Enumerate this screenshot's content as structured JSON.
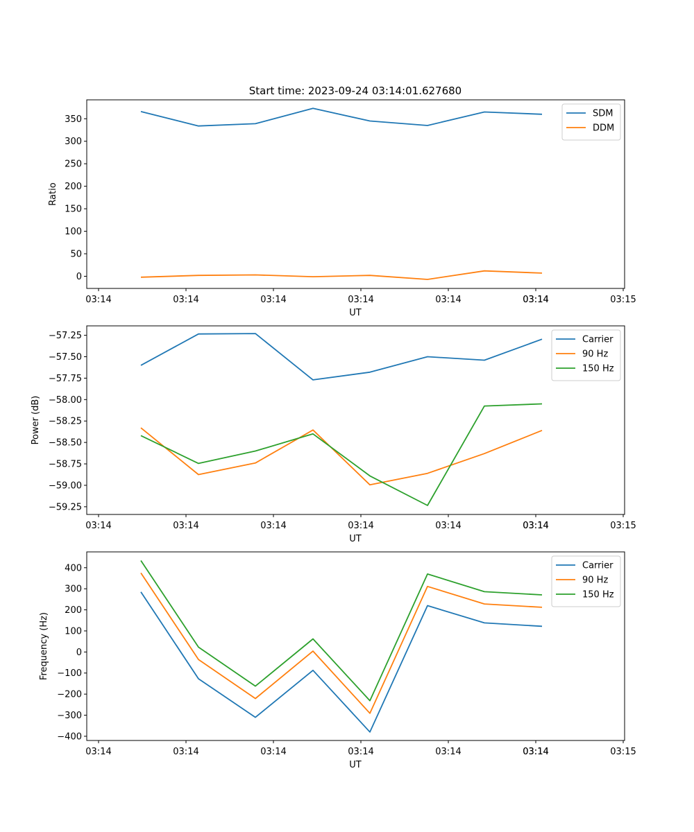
{
  "title": "Start time: 2023-09-24 03:14:01.627680",
  "colors": {
    "c0": "#1f77b4",
    "c1": "#ff7f0e",
    "c2": "#2ca02c"
  },
  "chart_data": [
    {
      "type": "line",
      "title": "Start time: 2023-09-24 03:14:01.627680",
      "xlabel": "UT",
      "ylabel": "Ratio",
      "x_ticks": [
        "03:14",
        "03:14",
        "03:14",
        "03:14",
        "03:14",
        "03:14",
        "03:14",
        "03:15"
      ],
      "x_tick_values": [
        0,
        1,
        2,
        3,
        4,
        5,
        6,
        6
      ],
      "xlim": [
        -0.6,
        5.6
      ],
      "ylim": [
        -27,
        392
      ],
      "y_ticks": [
        0,
        50,
        100,
        150,
        200,
        250,
        300,
        350
      ],
      "y_tick_labels": [
        "0",
        "50",
        "100",
        "150",
        "200",
        "250",
        "300",
        "350"
      ],
      "legend_position": "upper right",
      "x": [
        0,
        0.66,
        1.31,
        1.97,
        2.62,
        3.28,
        3.93,
        4.59
      ],
      "series": [
        {
          "name": "SDM",
          "color": "#1f77b4",
          "values": [
            366,
            334,
            339,
            373,
            345,
            335,
            365,
            360
          ]
        },
        {
          "name": "DDM",
          "color": "#ff7f0e",
          "values": [
            -2,
            2,
            3,
            -1,
            2,
            -7,
            12,
            7
          ]
        }
      ]
    },
    {
      "type": "line",
      "title": "",
      "xlabel": "UT",
      "ylabel": "Power (dB)",
      "x_ticks": [
        "03:14",
        "03:14",
        "03:14",
        "03:14",
        "03:14",
        "03:14",
        "03:14",
        "03:15"
      ],
      "x_tick_values": [
        0,
        1,
        2,
        3,
        4,
        5,
        6,
        6
      ],
      "xlim": [
        -0.6,
        5.6
      ],
      "ylim": [
        -59.34,
        -57.14
      ],
      "y_ticks": [
        -59.25,
        -59.0,
        -58.75,
        -58.5,
        -58.25,
        -58.0,
        -57.75,
        -57.5,
        -57.25
      ],
      "y_tick_labels": [
        "−59.25",
        "−59.00",
        "−58.75",
        "−58.50",
        "−58.25",
        "−58.00",
        "−57.75",
        "−57.50",
        "−57.25"
      ],
      "legend_position": "upper right",
      "x": [
        0,
        0.66,
        1.31,
        1.97,
        2.62,
        3.28,
        3.93,
        4.59
      ],
      "series": [
        {
          "name": "Carrier",
          "color": "#1f77b4",
          "values": [
            -57.6,
            -57.235,
            -57.23,
            -57.77,
            -57.68,
            -57.5,
            -57.54,
            -57.295
          ]
        },
        {
          "name": "90 Hz",
          "color": "#ff7f0e",
          "values": [
            -58.33,
            -58.875,
            -58.74,
            -58.355,
            -58.995,
            -58.86,
            -58.63,
            -58.36
          ]
        },
        {
          "name": "150 Hz",
          "color": "#2ca02c",
          "values": [
            -58.42,
            -58.745,
            -58.6,
            -58.4,
            -58.89,
            -59.235,
            -58.075,
            -58.05
          ]
        }
      ]
    },
    {
      "type": "line",
      "title": "",
      "xlabel": "UT",
      "ylabel": "Frequency (Hz)",
      "x_ticks": [
        "03:14",
        "03:14",
        "03:14",
        "03:14",
        "03:14",
        "03:14",
        "03:14",
        "03:15"
      ],
      "x_tick_values": [
        0,
        1,
        2,
        3,
        4,
        5,
        6,
        6
      ],
      "xlim": [
        -0.6,
        5.6
      ],
      "ylim": [
        -420,
        475
      ],
      "y_ticks": [
        -400,
        -300,
        -200,
        -100,
        0,
        100,
        200,
        300,
        400
      ],
      "y_tick_labels": [
        "−400",
        "−300",
        "−200",
        "−100",
        "0",
        "100",
        "200",
        "300",
        "400"
      ],
      "legend_position": "upper right",
      "x": [
        0,
        0.66,
        1.31,
        1.97,
        2.62,
        3.28,
        3.93,
        4.59
      ],
      "series": [
        {
          "name": "Carrier",
          "color": "#1f77b4",
          "values": [
            285,
            -127,
            -310,
            -87,
            -380,
            220,
            138,
            122
          ]
        },
        {
          "name": "90 Hz",
          "color": "#ff7f0e",
          "values": [
            375,
            -36,
            -221,
            4,
            -291,
            311,
            228,
            212
          ]
        },
        {
          "name": "150 Hz",
          "color": "#2ca02c",
          "values": [
            434,
            23,
            -162,
            62,
            -231,
            370,
            286,
            271
          ]
        }
      ]
    }
  ]
}
